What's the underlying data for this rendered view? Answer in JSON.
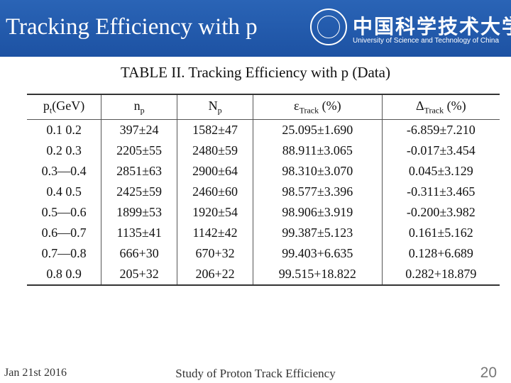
{
  "header": {
    "title": "Tracking Efficiency with p",
    "logo_cn": "中国科学技术大学",
    "logo_en": "University of Science and Technology of China"
  },
  "caption": "TABLE II. Tracking Efficiency with p (Data)",
  "table": {
    "columns": [
      "pt(GeV)",
      "np",
      "Np",
      "εTrack (%)",
      "ΔTrack (%)"
    ],
    "rows": [
      [
        "0.1    0.2",
        "397±24",
        "1582±47",
        "25.095±1.690",
        "-6.859±7.210"
      ],
      [
        "0.2    0.3",
        "2205±55",
        "2480±59",
        "88.911±3.065",
        "-0.017±3.454"
      ],
      [
        "0.3—0.4",
        "2851±63",
        "2900±64",
        "98.310±3.070",
        "0.045±3.129"
      ],
      [
        "0.4    0.5",
        "2425±59",
        "2460±60",
        "98.577±3.396",
        "-0.311±3.465"
      ],
      [
        "0.5—0.6",
        "1899±53",
        "1920±54",
        "98.906±3.919",
        "-0.200±3.982"
      ],
      [
        "0.6—0.7",
        "1135±41",
        "1142±42",
        "99.387±5.123",
        "0.161±5.162"
      ],
      [
        "0.7—0.8",
        "666+30",
        "670+32",
        "99.403+6.635",
        "0.128+6.689"
      ],
      [
        "0.8    0.9",
        "205+32",
        "206+22",
        "99.515+18.822",
        "0.282+18.879"
      ]
    ]
  },
  "footer": {
    "date": "Jan 21st 2016",
    "title": "Study of Proton Track Efficiency",
    "page": "20"
  }
}
